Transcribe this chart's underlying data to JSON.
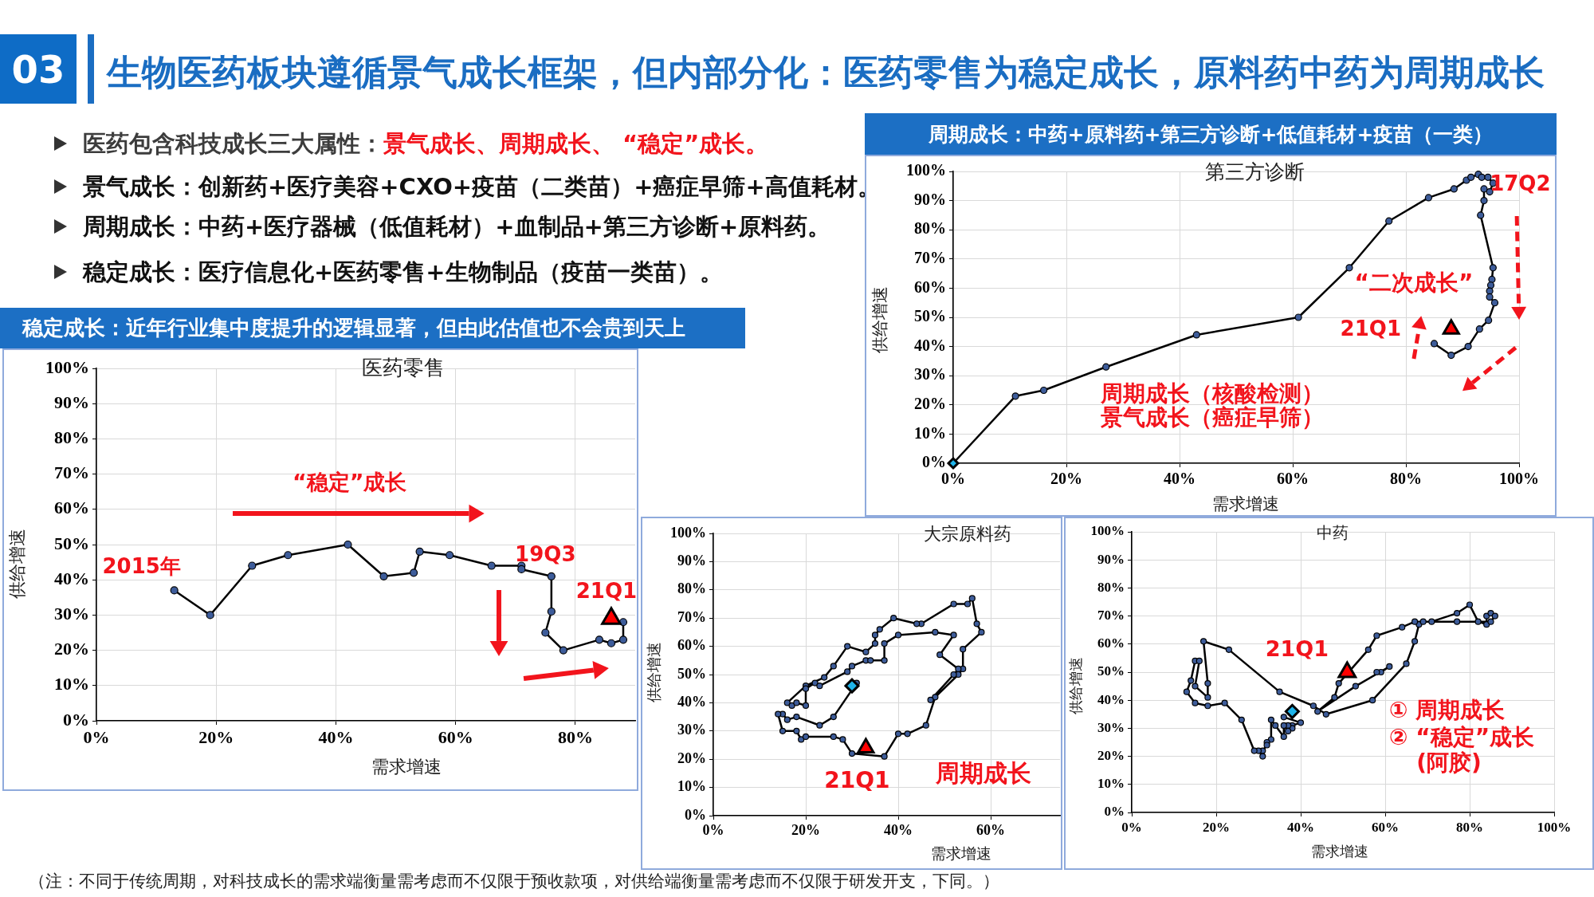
{
  "chart_data": [
    {
      "type": "other",
      "title": "生物医药板块遵循景气成长框架，但内部分化：医药零售为稳定成长，原料药中药为周期成长",
      "annotations": [
        "03",
        "医药包含科技成长三大属性：",
        "景气成长、周期成长、 “稳定”成长。",
        "景气成长：创新药+医疗美容+CXO+疫苗（二类苗）+癌症早筛+高值耗材。",
        "周期成长：中药+医疗器械（低值耗材）+血制品+第三方诊断+原料药。",
        "稳定成长：医疗信息化+医药零售+生物制品（疫苗一类苗）。",
        "（注：不同于传统周期，对科技成长的需求端衡量需考虑而不仅限于预收款项，对供给端衡量需考虑而不仅限于研发开支，下同。）"
      ]
    },
    {
      "type": "line",
      "title": "周期成长：中药+原料药+第三方诊断+低值耗材+疫苗（一类）",
      "subtitle": "第三方诊断",
      "xlabel": "需求增速",
      "ylabel": "供给增速",
      "xlim": [
        0,
        100
      ],
      "ylim": [
        0,
        100
      ],
      "xticks": [
        {
          "value": 0,
          "label": "0%"
        },
        {
          "value": 20,
          "label": "20%"
        },
        {
          "value": 40,
          "label": "40%"
        },
        {
          "value": 60,
          "label": "60%"
        },
        {
          "value": 80,
          "label": "80%"
        },
        {
          "value": 100,
          "label": "100%"
        }
      ],
      "yticks": [
        {
          "value": 0,
          "label": "0%"
        },
        {
          "value": 10,
          "label": "10%"
        },
        {
          "value": 20,
          "label": "20%"
        },
        {
          "value": 30,
          "label": "30%"
        },
        {
          "value": 40,
          "label": "40%"
        },
        {
          "value": 50,
          "label": "50%"
        },
        {
          "value": 60,
          "label": "60%"
        },
        {
          "value": 70,
          "label": "70%"
        },
        {
          "value": 80,
          "label": "80%"
        },
        {
          "value": 90,
          "label": "90%"
        },
        {
          "value": 100,
          "label": "100%"
        }
      ],
      "grid": true,
      "series": [
        {
          "type": "line",
          "color": "#000000",
          "marker": "circle",
          "x": [
            0,
            11,
            16,
            27,
            43,
            61,
            70,
            77,
            84,
            88.5,
            90.7,
            91.5,
            92.8,
            93.4,
            94.5,
            95.4,
            94.8,
            93.8,
            93.8,
            93.2,
            95.4,
            95.2,
            95.0,
            94.8,
            94.8,
            95.7,
            94.6,
            93,
            91,
            88,
            85
          ],
          "values": [
            0,
            23,
            25,
            33,
            44,
            50,
            67,
            83,
            91,
            94,
            97,
            98,
            99,
            98,
            98,
            96,
            93,
            94,
            90,
            85,
            67,
            63,
            61,
            59,
            57,
            55,
            49,
            46,
            40,
            37,
            41
          ]
        },
        {
          "type": "scatter",
          "color": "#1fb4ea",
          "marker": "diamond",
          "x": [
            0
          ],
          "values": [
            0
          ]
        },
        {
          "type": "scatter",
          "color": "#ff0000",
          "marker": "triangle",
          "x": [
            88
          ],
          "values": [
            46
          ]
        }
      ],
      "annotations": [
        {
          "text": "17Q2",
          "x": 95.4,
          "y": 96
        },
        "“二次成长”",
        {
          "text": "21Q1",
          "x": 88,
          "y": 46
        },
        "周期成长（核酸检测）",
        "景气成长（癌症早筛）"
      ]
    },
    {
      "type": "line",
      "title": "稳定成长：近年行业集中度提升的逻辑显著，但由此估值也不会贵到天上",
      "subtitle": "医药零售",
      "xlabel": "需求增速",
      "ylabel": "供给增速",
      "xlim": [
        0,
        90
      ],
      "ylim": [
        0,
        100
      ],
      "xticks": [
        {
          "value": 0,
          "label": "0%"
        },
        {
          "value": 20,
          "label": "20%"
        },
        {
          "value": 40,
          "label": "40%"
        },
        {
          "value": 60,
          "label": "60%"
        },
        {
          "value": 80,
          "label": "80%"
        }
      ],
      "yticks": [
        {
          "value": 0,
          "label": "0%"
        },
        {
          "value": 10,
          "label": "10%"
        },
        {
          "value": 20,
          "label": "20%"
        },
        {
          "value": 30,
          "label": "30%"
        },
        {
          "value": 40,
          "label": "40%"
        },
        {
          "value": 50,
          "label": "50%"
        },
        {
          "value": 60,
          "label": "60%"
        },
        {
          "value": 70,
          "label": "70%"
        },
        {
          "value": 80,
          "label": "80%"
        },
        {
          "value": 90,
          "label": "90%"
        },
        {
          "value": 100,
          "label": "100%"
        }
      ],
      "grid": true,
      "series": [
        {
          "type": "line",
          "color": "#000000",
          "marker": "circle",
          "x": [
            13,
            19,
            26,
            32,
            42,
            48,
            53,
            54,
            59,
            66,
            71,
            71,
            76,
            76,
            75,
            78,
            84,
            86,
            88,
            88
          ],
          "values": [
            37,
            30,
            44,
            47,
            50,
            41,
            42,
            48,
            47,
            44,
            44,
            43,
            41,
            31,
            25,
            20,
            23,
            22,
            23,
            28
          ]
        },
        {
          "type": "scatter",
          "color": "#ff0000",
          "marker": "triangle",
          "x": [
            86
          ],
          "values": [
            29
          ]
        }
      ],
      "annotations": [
        {
          "text": "2015年",
          "x": 13,
          "y": 37
        },
        "“稳定”成长",
        {
          "text": "19Q3",
          "x": 71,
          "y": 44
        },
        {
          "text": "21Q1",
          "x": 86,
          "y": 29
        }
      ]
    },
    {
      "type": "line",
      "title": "大宗原料药",
      "xlabel": "需求增速",
      "ylabel": "供给增速",
      "xlim": [
        0,
        75
      ],
      "ylim": [
        0,
        100
      ],
      "xticks": [
        {
          "value": 0,
          "label": "0%"
        },
        {
          "value": 20,
          "label": "20%"
        },
        {
          "value": 40,
          "label": "40%"
        },
        {
          "value": 60,
          "label": "60%"
        }
      ],
      "yticks": [
        {
          "value": 0,
          "label": "0%"
        },
        {
          "value": 10,
          "label": "10%"
        },
        {
          "value": 20,
          "label": "20%"
        },
        {
          "value": 30,
          "label": "30%"
        },
        {
          "value": 40,
          "label": "40%"
        },
        {
          "value": 50,
          "label": "50%"
        },
        {
          "value": 60,
          "label": "60%"
        },
        {
          "value": 70,
          "label": "70%"
        },
        {
          "value": 80,
          "label": "80%"
        },
        {
          "value": 90,
          "label": "90%"
        },
        {
          "value": 100,
          "label": "100%"
        }
      ],
      "grid": true,
      "series": [
        {
          "type": "line",
          "color": "#000000",
          "marker": "circle",
          "x": [
            31,
            26,
            23,
            18,
            16,
            15,
            14,
            15,
            18,
            19,
            20,
            26,
            28,
            30,
            37,
            40,
            42,
            46,
            48,
            53,
            54,
            54,
            58,
            57,
            56,
            55,
            52,
            45,
            44,
            39,
            36,
            35,
            35,
            33,
            29,
            26,
            24,
            20,
            16,
            17,
            18,
            20,
            20,
            22,
            23,
            29,
            30,
            33,
            34,
            37,
            37,
            40,
            48,
            52,
            49,
            53,
            52,
            47
          ],
          "values": [
            47,
            35,
            32,
            35,
            34,
            36,
            36,
            30,
            30,
            27,
            28,
            28,
            27,
            22,
            21,
            29,
            29,
            32,
            42,
            50,
            52,
            59,
            65,
            68,
            77,
            75,
            75,
            68,
            68,
            70,
            66,
            64,
            61,
            58,
            60,
            53,
            49,
            46,
            40,
            39,
            40,
            39,
            45,
            47,
            46,
            51,
            53,
            55,
            55,
            55,
            61,
            64,
            65,
            64,
            57,
            52,
            50,
            41
          ]
        },
        {
          "type": "scatter",
          "color": "#1fb4ea",
          "marker": "diamond",
          "x": [
            30
          ],
          "values": [
            46
          ]
        },
        {
          "type": "scatter",
          "color": "#ff0000",
          "marker": "triangle",
          "x": [
            33
          ],
          "values": [
            24
          ]
        }
      ],
      "annotations": [
        {
          "text": "21Q1",
          "x": 33,
          "y": 24
        },
        "周期成长"
      ]
    },
    {
      "type": "line",
      "title": "中药",
      "xlabel": "需求增速",
      "ylabel": "供给增速",
      "xlim": [
        0,
        100
      ],
      "ylim": [
        0,
        100
      ],
      "xticks": [
        {
          "value": 0,
          "label": "0%"
        },
        {
          "value": 20,
          "label": "20%"
        },
        {
          "value": 40,
          "label": "40%"
        },
        {
          "value": 60,
          "label": "60%"
        },
        {
          "value": 80,
          "label": "80%"
        },
        {
          "value": 100,
          "label": "100%"
        }
      ],
      "yticks": [
        {
          "value": 0,
          "label": "0%"
        },
        {
          "value": 10,
          "label": "10%"
        },
        {
          "value": 20,
          "label": "20%"
        },
        {
          "value": 30,
          "label": "30%"
        },
        {
          "value": 40,
          "label": "40%"
        },
        {
          "value": 50,
          "label": "50%"
        },
        {
          "value": 60,
          "label": "60%"
        },
        {
          "value": 70,
          "label": "70%"
        },
        {
          "value": 80,
          "label": "80%"
        },
        {
          "value": 90,
          "label": "90%"
        },
        {
          "value": 100,
          "label": "100%"
        }
      ],
      "grid": true,
      "series": [
        {
          "type": "line",
          "color": "#000000",
          "marker": "circle",
          "x": [
            36,
            40,
            38,
            38,
            37,
            37,
            36,
            36,
            34,
            33,
            33,
            32,
            32,
            31,
            31,
            30,
            29,
            26,
            22,
            18,
            15,
            13,
            14,
            15,
            16,
            15,
            18,
            18,
            17,
            23,
            35,
            43,
            46,
            57,
            65,
            67,
            68,
            69,
            71,
            77,
            80,
            82,
            84,
            84,
            85,
            86,
            85,
            77,
            67,
            64,
            58,
            56,
            49,
            48,
            44,
            53,
            61,
            59,
            58
          ],
          "values": [
            34,
            32,
            31,
            30,
            31,
            29,
            31,
            27,
            31,
            33,
            26,
            25,
            24,
            22,
            20,
            22,
            22,
            33,
            39,
            38,
            39,
            43,
            47,
            54,
            54,
            45,
            41,
            46,
            61,
            58,
            43,
            38,
            35,
            40,
            53,
            61,
            67,
            68,
            68,
            71,
            74,
            68,
            67,
            70,
            71,
            70,
            68,
            68,
            68,
            66,
            63,
            58,
            46,
            41,
            36,
            45,
            52,
            50,
            50
          ]
        },
        {
          "type": "scatter",
          "color": "#1fb4ea",
          "marker": "diamond",
          "x": [
            38
          ],
          "values": [
            36
          ]
        },
        {
          "type": "scatter",
          "color": "#ff0000",
          "marker": "triangle",
          "x": [
            51
          ],
          "values": [
            50
          ]
        }
      ],
      "annotations": [
        {
          "text": "21Q1",
          "x": 51,
          "y": 50
        },
        "① 周期成长",
        "② “稳定”成长",
        "(阿胶)"
      ]
    }
  ]
}
